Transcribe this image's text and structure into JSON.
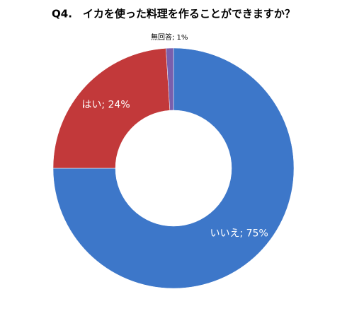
{
  "chart_data": {
    "type": "donut",
    "title": "Q4.　イカを使った料理を作ることができますか？",
    "categories": [
      "いいえ",
      "はい",
      "無回答"
    ],
    "values": [
      75,
      24,
      1
    ],
    "value_labels": [
      "いいえ; 75%",
      "はい; 24%",
      "無回答; 1%"
    ],
    "colors": [
      "#3d77c9",
      "#c2393a",
      "#7a5fac"
    ]
  }
}
